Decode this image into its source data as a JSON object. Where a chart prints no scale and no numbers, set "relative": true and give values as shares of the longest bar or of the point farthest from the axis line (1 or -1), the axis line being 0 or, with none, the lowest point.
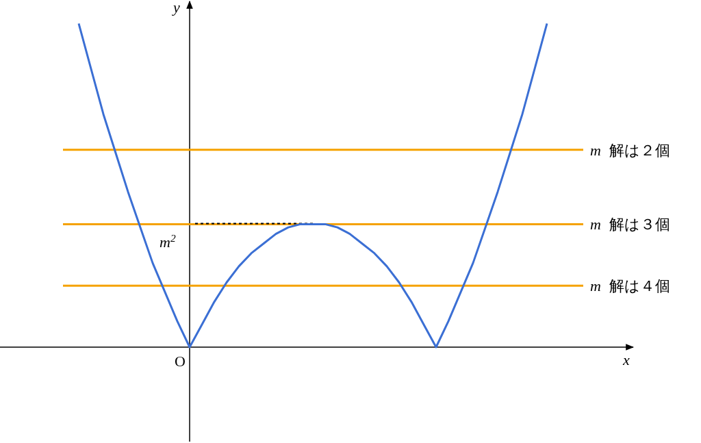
{
  "chart_data": {
    "type": "line",
    "relative": true,
    "xlabel": "x",
    "ylabel": "y",
    "categories": [
      null,
      null,
      null,
      null,
      null,
      null,
      null,
      null,
      null,
      null,
      null,
      null,
      null,
      null,
      null,
      null,
      null,
      null,
      null,
      null,
      null,
      null,
      null,
      null,
      null,
      null,
      null,
      null,
      null,
      null,
      null,
      null,
      null,
      null,
      null,
      null,
      null,
      null,
      null
    ],
    "series": [
      {
        "color": "#3b6fd4",
        "values": [
          1,
          0.86,
          0.72,
          0.6,
          0.48,
          0.37,
          0.26,
          0.17,
          0.08,
          0,
          0.07,
          0.14,
          0.2,
          0.25,
          0.29,
          0.32,
          0.35,
          0.37,
          0.38,
          0.38,
          0.38,
          0.37,
          0.35,
          0.32,
          0.29,
          0.25,
          0.2,
          0.14,
          0.07,
          0,
          0.08,
          0.17,
          0.26,
          0.37,
          0.48,
          0.6,
          0.72,
          0.86,
          1
        ]
      }
    ],
    "ref_lines": [
      {
        "axis": "y",
        "value": 0.61,
        "label": "m 解は２個",
        "color": "#f5a200"
      },
      {
        "axis": "y",
        "value": 0.38,
        "label": "m 解は３個",
        "color": "#f5a200"
      },
      {
        "axis": "y",
        "value": 0.19,
        "label": "m 解は４個",
        "color": "#f5a200"
      },
      {
        "axis": "y",
        "value": 0.38,
        "color": "#000000",
        "line_style": "dotted"
      }
    ],
    "annotations": [
      {
        "text": "m$^{2}$",
        "y": 0.38
      },
      "O"
    ],
    "line_style": "solid"
  }
}
